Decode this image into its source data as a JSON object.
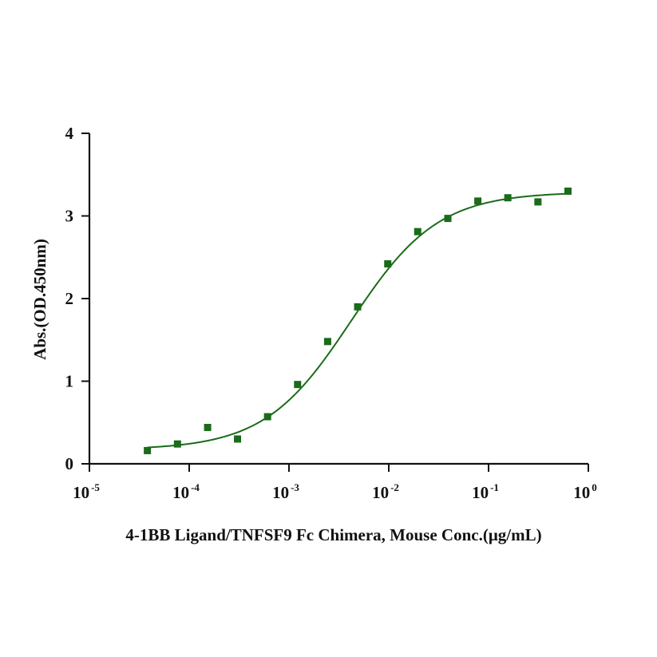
{
  "chart_data": {
    "type": "scatter",
    "title": "",
    "xlabel": "4-1BB Ligand/TNFSF9 Fc Chimera, Mouse Conc.(μg/mL)",
    "ylabel": "Abs.(OD.450nm)",
    "x_scale": "log10",
    "xlim": [
      1e-05,
      1
    ],
    "ylim": [
      0,
      4
    ],
    "x_ticks": [
      {
        "base": "10",
        "exp": "-5"
      },
      {
        "base": "10",
        "exp": "-4"
      },
      {
        "base": "10",
        "exp": "-3"
      },
      {
        "base": "10",
        "exp": "-2"
      },
      {
        "base": "10",
        "exp": "-1"
      },
      {
        "base": "10",
        "exp": "0"
      }
    ],
    "y_ticks": [
      "0",
      "1",
      "2",
      "3",
      "4"
    ],
    "grid": false,
    "legend": "none",
    "color": "#1a6b1a",
    "series": [
      {
        "marker": "square",
        "x": [
          3.81e-05,
          7.63e-05,
          0.000153,
          0.000305,
          0.00061,
          0.00122,
          0.00244,
          0.00488,
          0.00977,
          0.0195,
          0.0391,
          0.0781,
          0.156,
          0.3125,
          0.625
        ],
        "y": [
          0.16,
          0.24,
          0.44,
          0.3,
          0.57,
          0.96,
          1.48,
          1.9,
          2.42,
          2.81,
          2.97,
          3.18,
          3.22,
          3.17,
          3.3
        ]
      }
    ],
    "fit": {
      "model": "4PL",
      "bottom": 0.17,
      "top": 3.29,
      "ec50": 0.0042,
      "hill": 1.0,
      "x_range": [
        3.81e-05,
        0.625
      ]
    }
  }
}
